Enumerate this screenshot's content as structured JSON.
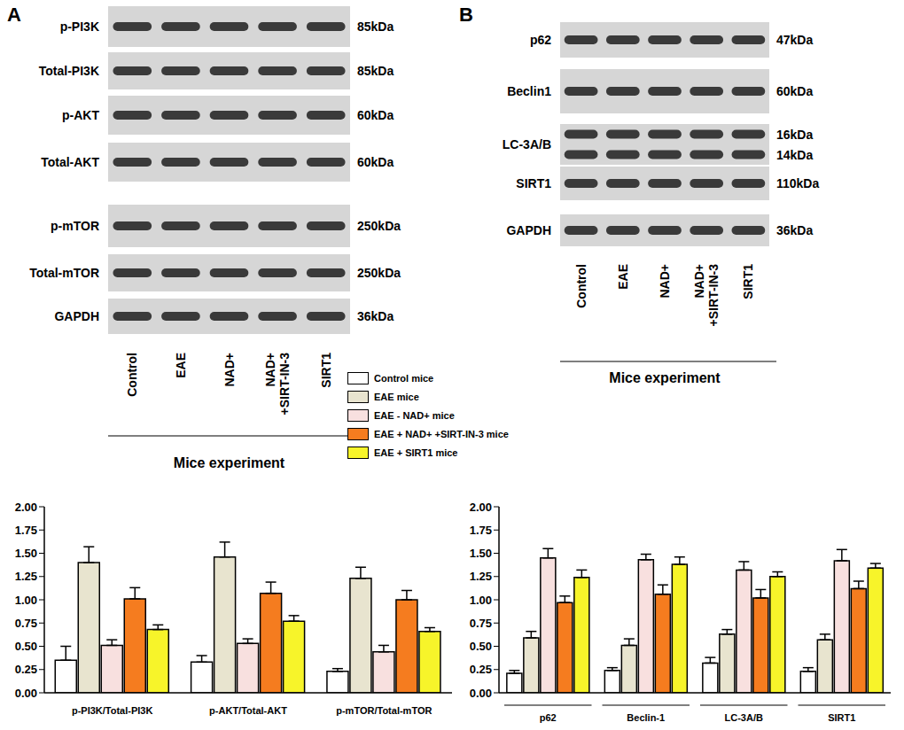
{
  "chart_data": [
    {
      "type": "bar",
      "categories": [
        "p-PI3K/Total-PI3K",
        "p-AKT/Total-AKT",
        "p-mTOR/Total-mTOR"
      ],
      "series": [
        {
          "name": "Control mice",
          "color": "#ffffff",
          "values": [
            0.35,
            0.33,
            0.23
          ],
          "errors": [
            0.15,
            0.07,
            0.03
          ]
        },
        {
          "name": "EAE mice",
          "color": "#e8e4cf",
          "values": [
            1.4,
            1.46,
            1.23
          ],
          "errors": [
            0.17,
            0.16,
            0.12
          ]
        },
        {
          "name": "EAE - NAD+ mice",
          "color": "#f8e0df",
          "values": [
            0.51,
            0.53,
            0.44
          ],
          "errors": [
            0.06,
            0.05,
            0.07
          ]
        },
        {
          "name": "EAE + NAD+ +SIRT-IN-3 mice",
          "color": "#f57c1f",
          "values": [
            1.01,
            1.07,
            1.0
          ],
          "errors": [
            0.12,
            0.12,
            0.1
          ]
        },
        {
          "name": "EAE + SIRT1 mice",
          "color": "#f7f42a",
          "values": [
            0.68,
            0.77,
            0.66
          ],
          "errors": [
            0.05,
            0.06,
            0.04
          ]
        }
      ],
      "ylim": [
        0,
        2
      ],
      "yticks": [
        {
          "value": 0,
          "label": "0.00"
        },
        {
          "value": 0.25,
          "label": "0.25"
        },
        {
          "value": 0.5,
          "label": "0.50"
        },
        {
          "value": 0.75,
          "label": "0.75"
        },
        {
          "value": 1,
          "label": "1.00"
        },
        {
          "value": 1.25,
          "label": "1.25"
        },
        {
          "value": 1.5,
          "label": "1.50"
        },
        {
          "value": 1.75,
          "label": "1.75"
        },
        {
          "value": 2,
          "label": "2.00"
        }
      ],
      "grid": false,
      "legend": "top right"
    },
    {
      "type": "bar",
      "categories": [
        "p62",
        "Beclin-1",
        "LC-3A/B",
        "SIRT1"
      ],
      "series": [
        {
          "color": "#ffffff",
          "values": [
            0.21,
            0.24,
            0.32,
            0.23
          ],
          "errors": [
            0.03,
            0.03,
            0.06,
            0.04
          ]
        },
        {
          "color": "#e8e4cf",
          "values": [
            0.59,
            0.51,
            0.63,
            0.57
          ],
          "errors": [
            0.07,
            0.07,
            0.05,
            0.06
          ]
        },
        {
          "color": "#f8e0df",
          "values": [
            1.45,
            1.43,
            1.32,
            1.42
          ],
          "errors": [
            0.1,
            0.06,
            0.09,
            0.12
          ]
        },
        {
          "color": "#f57c1f",
          "values": [
            0.97,
            1.06,
            1.02,
            1.12
          ],
          "errors": [
            0.07,
            0.1,
            0.09,
            0.08
          ]
        },
        {
          "color": "#f7f42a",
          "values": [
            1.24,
            1.38,
            1.25,
            1.34
          ],
          "errors": [
            0.08,
            0.08,
            0.05,
            0.05
          ]
        }
      ],
      "ylim": [
        0,
        2
      ],
      "yticks": [
        {
          "value": 0,
          "label": "0.00"
        },
        {
          "value": 0.25,
          "label": "0.25"
        },
        {
          "value": 0.5,
          "label": "0.50"
        },
        {
          "value": 0.75,
          "label": "0.75"
        },
        {
          "value": 1,
          "label": "1.00"
        },
        {
          "value": 1.25,
          "label": "1.25"
        },
        {
          "value": 1.5,
          "label": "1.50"
        },
        {
          "value": 1.75,
          "label": "1.75"
        },
        {
          "value": 2,
          "label": "2.00"
        }
      ],
      "grid": false
    }
  ],
  "blots": [
    {
      "panel": "A",
      "rows": [
        {
          "label": "p-PI3K",
          "sizes": [
            "85kDa"
          ]
        },
        {
          "label": "Total-PI3K",
          "sizes": [
            "85kDa"
          ]
        },
        {
          "label": "p-AKT",
          "sizes": [
            "60kDa"
          ]
        },
        {
          "label": "Total-AKT",
          "sizes": [
            "60kDa"
          ]
        },
        {
          "label": "p-mTOR",
          "sizes": [
            "250kDa"
          ]
        },
        {
          "label": "Total-mTOR",
          "sizes": [
            "250kDa"
          ]
        },
        {
          "label": "GAPDH",
          "sizes": [
            "36kDa"
          ]
        }
      ],
      "lanes": [
        [
          "Control"
        ],
        [
          "EAE"
        ],
        [
          "NAD+"
        ],
        [
          "NAD+",
          "+SIRT-IN-3"
        ],
        [
          "SIRT1"
        ]
      ],
      "caption": "Mice experiment"
    },
    {
      "panel": "B",
      "rows": [
        {
          "label": "p62",
          "sizes": [
            "47kDa"
          ]
        },
        {
          "label": "Beclin1",
          "sizes": [
            "60kDa"
          ]
        },
        {
          "label": "LC-3A/B",
          "sizes": [
            "16kDa",
            "14kDa"
          ]
        },
        {
          "label": "SIRT1",
          "sizes": [
            "110kDa"
          ]
        },
        {
          "label": "GAPDH",
          "sizes": [
            "36kDa"
          ]
        }
      ],
      "lanes": [
        [
          "Control"
        ],
        [
          "EAE"
        ],
        [
          "NAD+"
        ],
        [
          "NAD+",
          "+SIRT-IN-3"
        ],
        [
          "SIRT1"
        ]
      ],
      "caption": "Mice experiment"
    }
  ]
}
